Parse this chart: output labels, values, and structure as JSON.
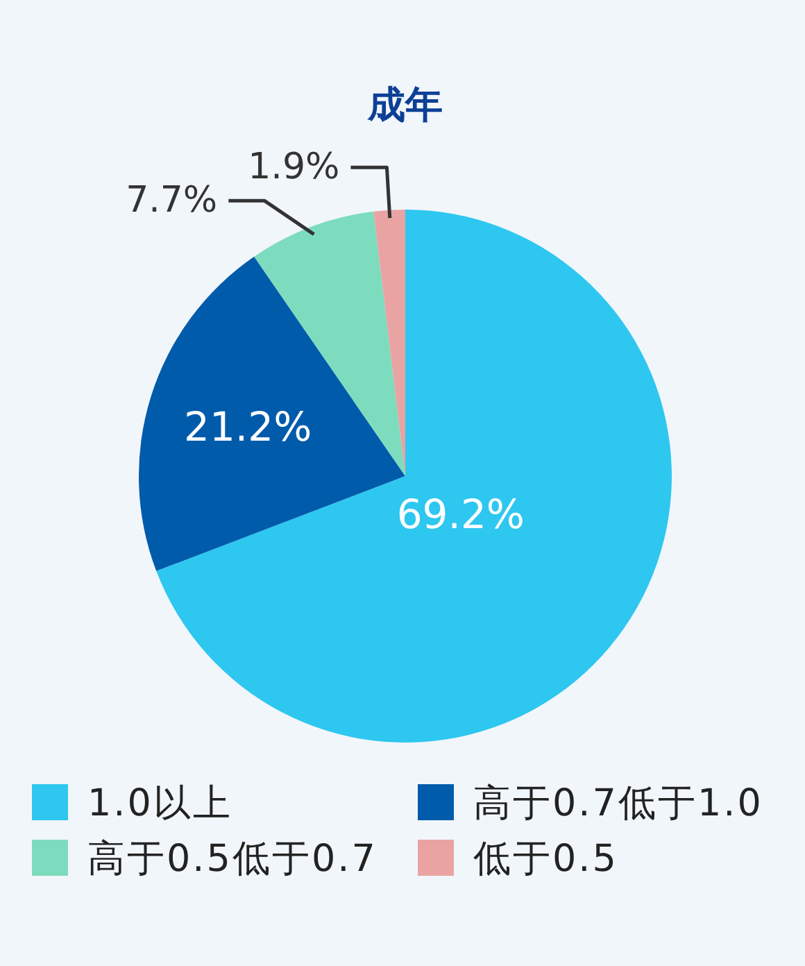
{
  "chart_data": {
    "type": "pie",
    "title": "成年",
    "categories": [
      "1.0以上",
      "高于0.7低于1.0",
      "高于0.5低于0.7",
      "低于0.5"
    ],
    "values": [
      69.2,
      21.2,
      7.7,
      1.9
    ],
    "colors": [
      "#2ec7f0",
      "#005bab",
      "#7ddcbd",
      "#e9a3a3"
    ],
    "value_labels": [
      "69.2%",
      "21.2%",
      "7.7%",
      "1.9%"
    ],
    "legend": "bottom"
  }
}
